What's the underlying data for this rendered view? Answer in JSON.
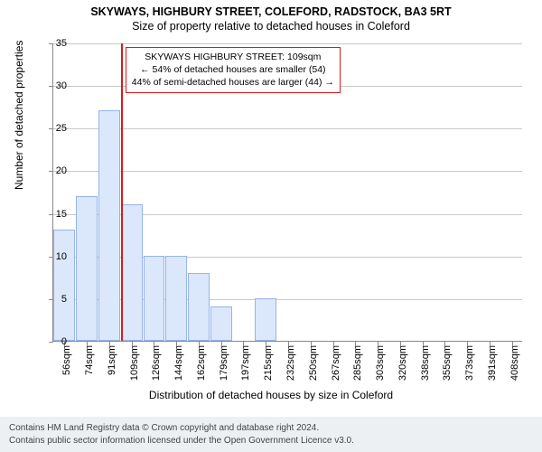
{
  "title_main": "SKYWAYS, HIGHBURY STREET, COLEFORD, RADSTOCK, BA3 5RT",
  "title_sub": "Size of property relative to detached houses in Coleford",
  "chart": {
    "type": "bar",
    "ylim": [
      0,
      35
    ],
    "ytick_step": 5,
    "ylabel": "Number of detached properties",
    "xlabel": "Distribution of detached houses by size in Coleford",
    "categories": [
      "56sqm",
      "74sqm",
      "91sqm",
      "109sqm",
      "126sqm",
      "144sqm",
      "162sqm",
      "179sqm",
      "197sqm",
      "215sqm",
      "232sqm",
      "250sqm",
      "267sqm",
      "285sqm",
      "303sqm",
      "320sqm",
      "338sqm",
      "355sqm",
      "373sqm",
      "391sqm",
      "408sqm"
    ],
    "values": [
      13,
      17,
      27,
      16,
      10,
      10,
      8,
      4,
      0,
      5,
      0,
      0,
      0,
      0,
      0,
      0,
      0,
      0,
      0,
      0,
      0
    ],
    "bar_fill": "#dbe7fb",
    "bar_border": "#96b4e6",
    "grid_color": "#c8c8c8",
    "axis_color": "#888888",
    "background_color": "#ffffff",
    "bar_width_ratio": 0.96,
    "marker_line_color": "#d81b1b",
    "marker_position_index": 3,
    "label_fontsize": 12,
    "tick_fontsize": 11,
    "title_fontsize": 12.5
  },
  "info_box": {
    "line1": "SKYWAYS HIGHBURY STREET: 109sqm",
    "line2": "← 54% of detached houses are smaller (54)",
    "line3": "44% of semi-detached houses are larger (44) →",
    "border_color": "#d81b1b",
    "fontsize": 10.5
  },
  "footer": {
    "line1": "Contains HM Land Registry data © Crown copyright and database right 2024.",
    "line2": "Contains public sector information licensed under the Open Government Licence v3.0.",
    "background": "#ecf0f2"
  }
}
